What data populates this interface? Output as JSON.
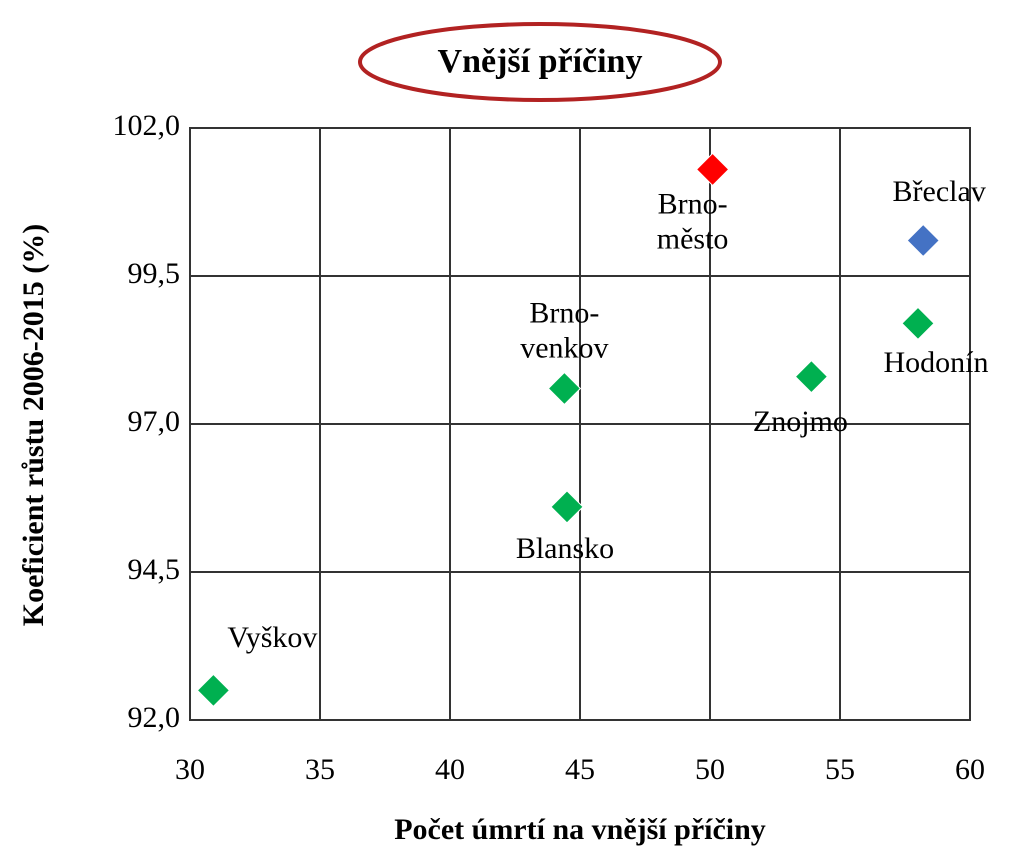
{
  "chart_data": {
    "type": "scatter",
    "title": "Vnější příčiny",
    "xlabel": "Počet úmrtí na vnější příčiny",
    "ylabel": "Koeficient růstu 2006-2015 (%)",
    "points": [
      {
        "label": "Brno-město",
        "x": 50.1,
        "y": 101.3,
        "color": "#ff0000"
      },
      {
        "label": "Břeclav",
        "x": 58.2,
        "y": 100.1,
        "color": "#4472c4"
      },
      {
        "label": "Hodonín",
        "x": 58.0,
        "y": 98.7,
        "color": "#00b050"
      },
      {
        "label": "Znojmo",
        "x": 53.9,
        "y": 97.8,
        "color": "#00b050"
      },
      {
        "label": "Brno-venkov",
        "x": 44.4,
        "y": 97.6,
        "color": "#00b050"
      },
      {
        "label": "Blansko",
        "x": 44.5,
        "y": 95.6,
        "color": "#00b050"
      },
      {
        "label": "Vyškov",
        "x": 30.9,
        "y": 92.5,
        "color": "#00b050"
      }
    ],
    "xlim": [
      30,
      60
    ],
    "xticks": [
      30,
      35,
      40,
      45,
      50,
      55,
      60
    ],
    "ylim": [
      92,
      102
    ],
    "yticks": [
      {
        "value": 92,
        "label": "92,0"
      },
      {
        "value": 94.5,
        "label": "94,5"
      },
      {
        "value": 97,
        "label": "97,0"
      },
      {
        "value": 99.5,
        "label": "99,5"
      },
      {
        "value": 102,
        "label": "102,0"
      }
    ],
    "grid": true
  }
}
